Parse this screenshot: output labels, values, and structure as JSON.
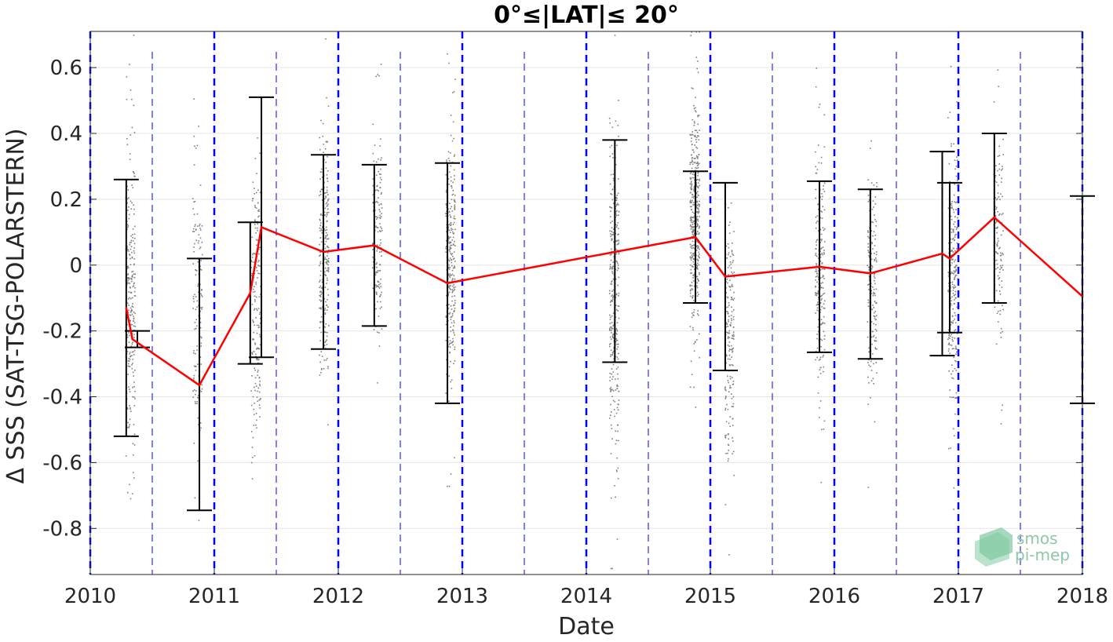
{
  "chart_data": {
    "type": "line",
    "title": "0°≤|LAT|≤ 20°",
    "xlabel": "Date",
    "ylabel": "Δ SSS (SAT-TSG-POLARSTERN)",
    "xlim": [
      2010,
      2018
    ],
    "ylim": [
      -0.94,
      0.71
    ],
    "x_ticks": [
      "2010",
      "2011",
      "2012",
      "2013",
      "2014",
      "2015",
      "2016",
      "2017",
      "2018"
    ],
    "y_ticks": [
      "0.6",
      "0.4",
      "0.2",
      "0",
      "-0.2",
      "-0.4",
      "-0.6",
      "-0.8"
    ],
    "y_tick_values": [
      0.6,
      0.4,
      0.2,
      0,
      -0.2,
      -0.4,
      -0.6,
      -0.8
    ],
    "grid": true,
    "year_lines": [
      2010,
      2011,
      2012,
      2013,
      2014,
      2015,
      2016,
      2017,
      2018
    ],
    "half_year_lines": [
      2010.5,
      2011.5,
      2012.5,
      2013.5,
      2014.5,
      2015.5,
      2016.5,
      2017.5
    ],
    "series": [
      {
        "color": "#ff0000",
        "x": [
          2010.29,
          2010.34,
          2010.88,
          2011.29,
          2011.38,
          2011.88,
          2012.29,
          2012.88,
          2014.23,
          2014.88,
          2015.12,
          2015.88,
          2016.29,
          2016.87,
          2016.93,
          2017.29,
          2018.0
        ],
        "y": [
          -0.13,
          -0.225,
          -0.365,
          -0.085,
          0.115,
          0.04,
          0.06,
          -0.055,
          0.04,
          0.085,
          -0.035,
          -0.005,
          -0.025,
          0.035,
          0.02,
          0.145,
          -0.095
        ]
      }
    ],
    "error_bars": [
      {
        "x": 2010.29,
        "low": -0.52,
        "high": 0.26
      },
      {
        "x": 2010.38,
        "low": -0.25,
        "high": -0.2
      },
      {
        "x": 2010.88,
        "low": -0.745,
        "high": 0.02
      },
      {
        "x": 2011.29,
        "low": -0.3,
        "high": 0.13
      },
      {
        "x": 2011.38,
        "low": -0.28,
        "high": 0.51
      },
      {
        "x": 2011.88,
        "low": -0.255,
        "high": 0.335
      },
      {
        "x": 2012.29,
        "low": -0.185,
        "high": 0.305
      },
      {
        "x": 2012.88,
        "low": -0.42,
        "high": 0.31
      },
      {
        "x": 2014.23,
        "low": -0.295,
        "high": 0.38
      },
      {
        "x": 2014.88,
        "low": -0.115,
        "high": 0.285
      },
      {
        "x": 2015.12,
        "low": -0.32,
        "high": 0.25
      },
      {
        "x": 2015.88,
        "low": -0.265,
        "high": 0.255
      },
      {
        "x": 2016.29,
        "low": -0.285,
        "high": 0.23
      },
      {
        "x": 2016.87,
        "low": -0.275,
        "high": 0.345
      },
      {
        "x": 2016.93,
        "low": -0.205,
        "high": 0.25
      },
      {
        "x": 2017.29,
        "low": -0.115,
        "high": 0.4
      },
      {
        "x": 2018.0,
        "low": -0.42,
        "high": 0.21
      }
    ],
    "scatter_clusters": [
      {
        "x": 2010.32,
        "low": -0.9,
        "high": 0.7,
        "n": 260
      },
      {
        "x": 2010.86,
        "low": -0.93,
        "high": 0.7,
        "n": 140
      },
      {
        "x": 2011.33,
        "low": -0.9,
        "high": 0.65,
        "n": 180
      },
      {
        "x": 2011.88,
        "low": -0.62,
        "high": 0.7,
        "n": 260
      },
      {
        "x": 2012.31,
        "low": -0.48,
        "high": 0.66,
        "n": 160
      },
      {
        "x": 2012.9,
        "low": -0.67,
        "high": 0.69,
        "n": 300
      },
      {
        "x": 2014.22,
        "low": -0.92,
        "high": 0.7,
        "n": 320
      },
      {
        "x": 2014.87,
        "low": -0.43,
        "high": 0.71,
        "n": 420
      },
      {
        "x": 2015.15,
        "low": -0.88,
        "high": 0.45,
        "n": 200
      },
      {
        "x": 2015.88,
        "low": -0.67,
        "high": 0.6,
        "n": 220
      },
      {
        "x": 2016.3,
        "low": -0.72,
        "high": 0.62,
        "n": 170
      },
      {
        "x": 2016.95,
        "low": -0.74,
        "high": 0.62,
        "n": 240
      },
      {
        "x": 2017.32,
        "low": -0.48,
        "high": 0.65,
        "n": 130
      }
    ]
  },
  "logo": {
    "line1": "smos",
    "line2": "pi-mep"
  },
  "colors": {
    "line": "#ff0000",
    "errorbar": "#000000",
    "points": "#7f7f7f",
    "yearline": "#0000ff",
    "grid": "#e6e6e6"
  }
}
